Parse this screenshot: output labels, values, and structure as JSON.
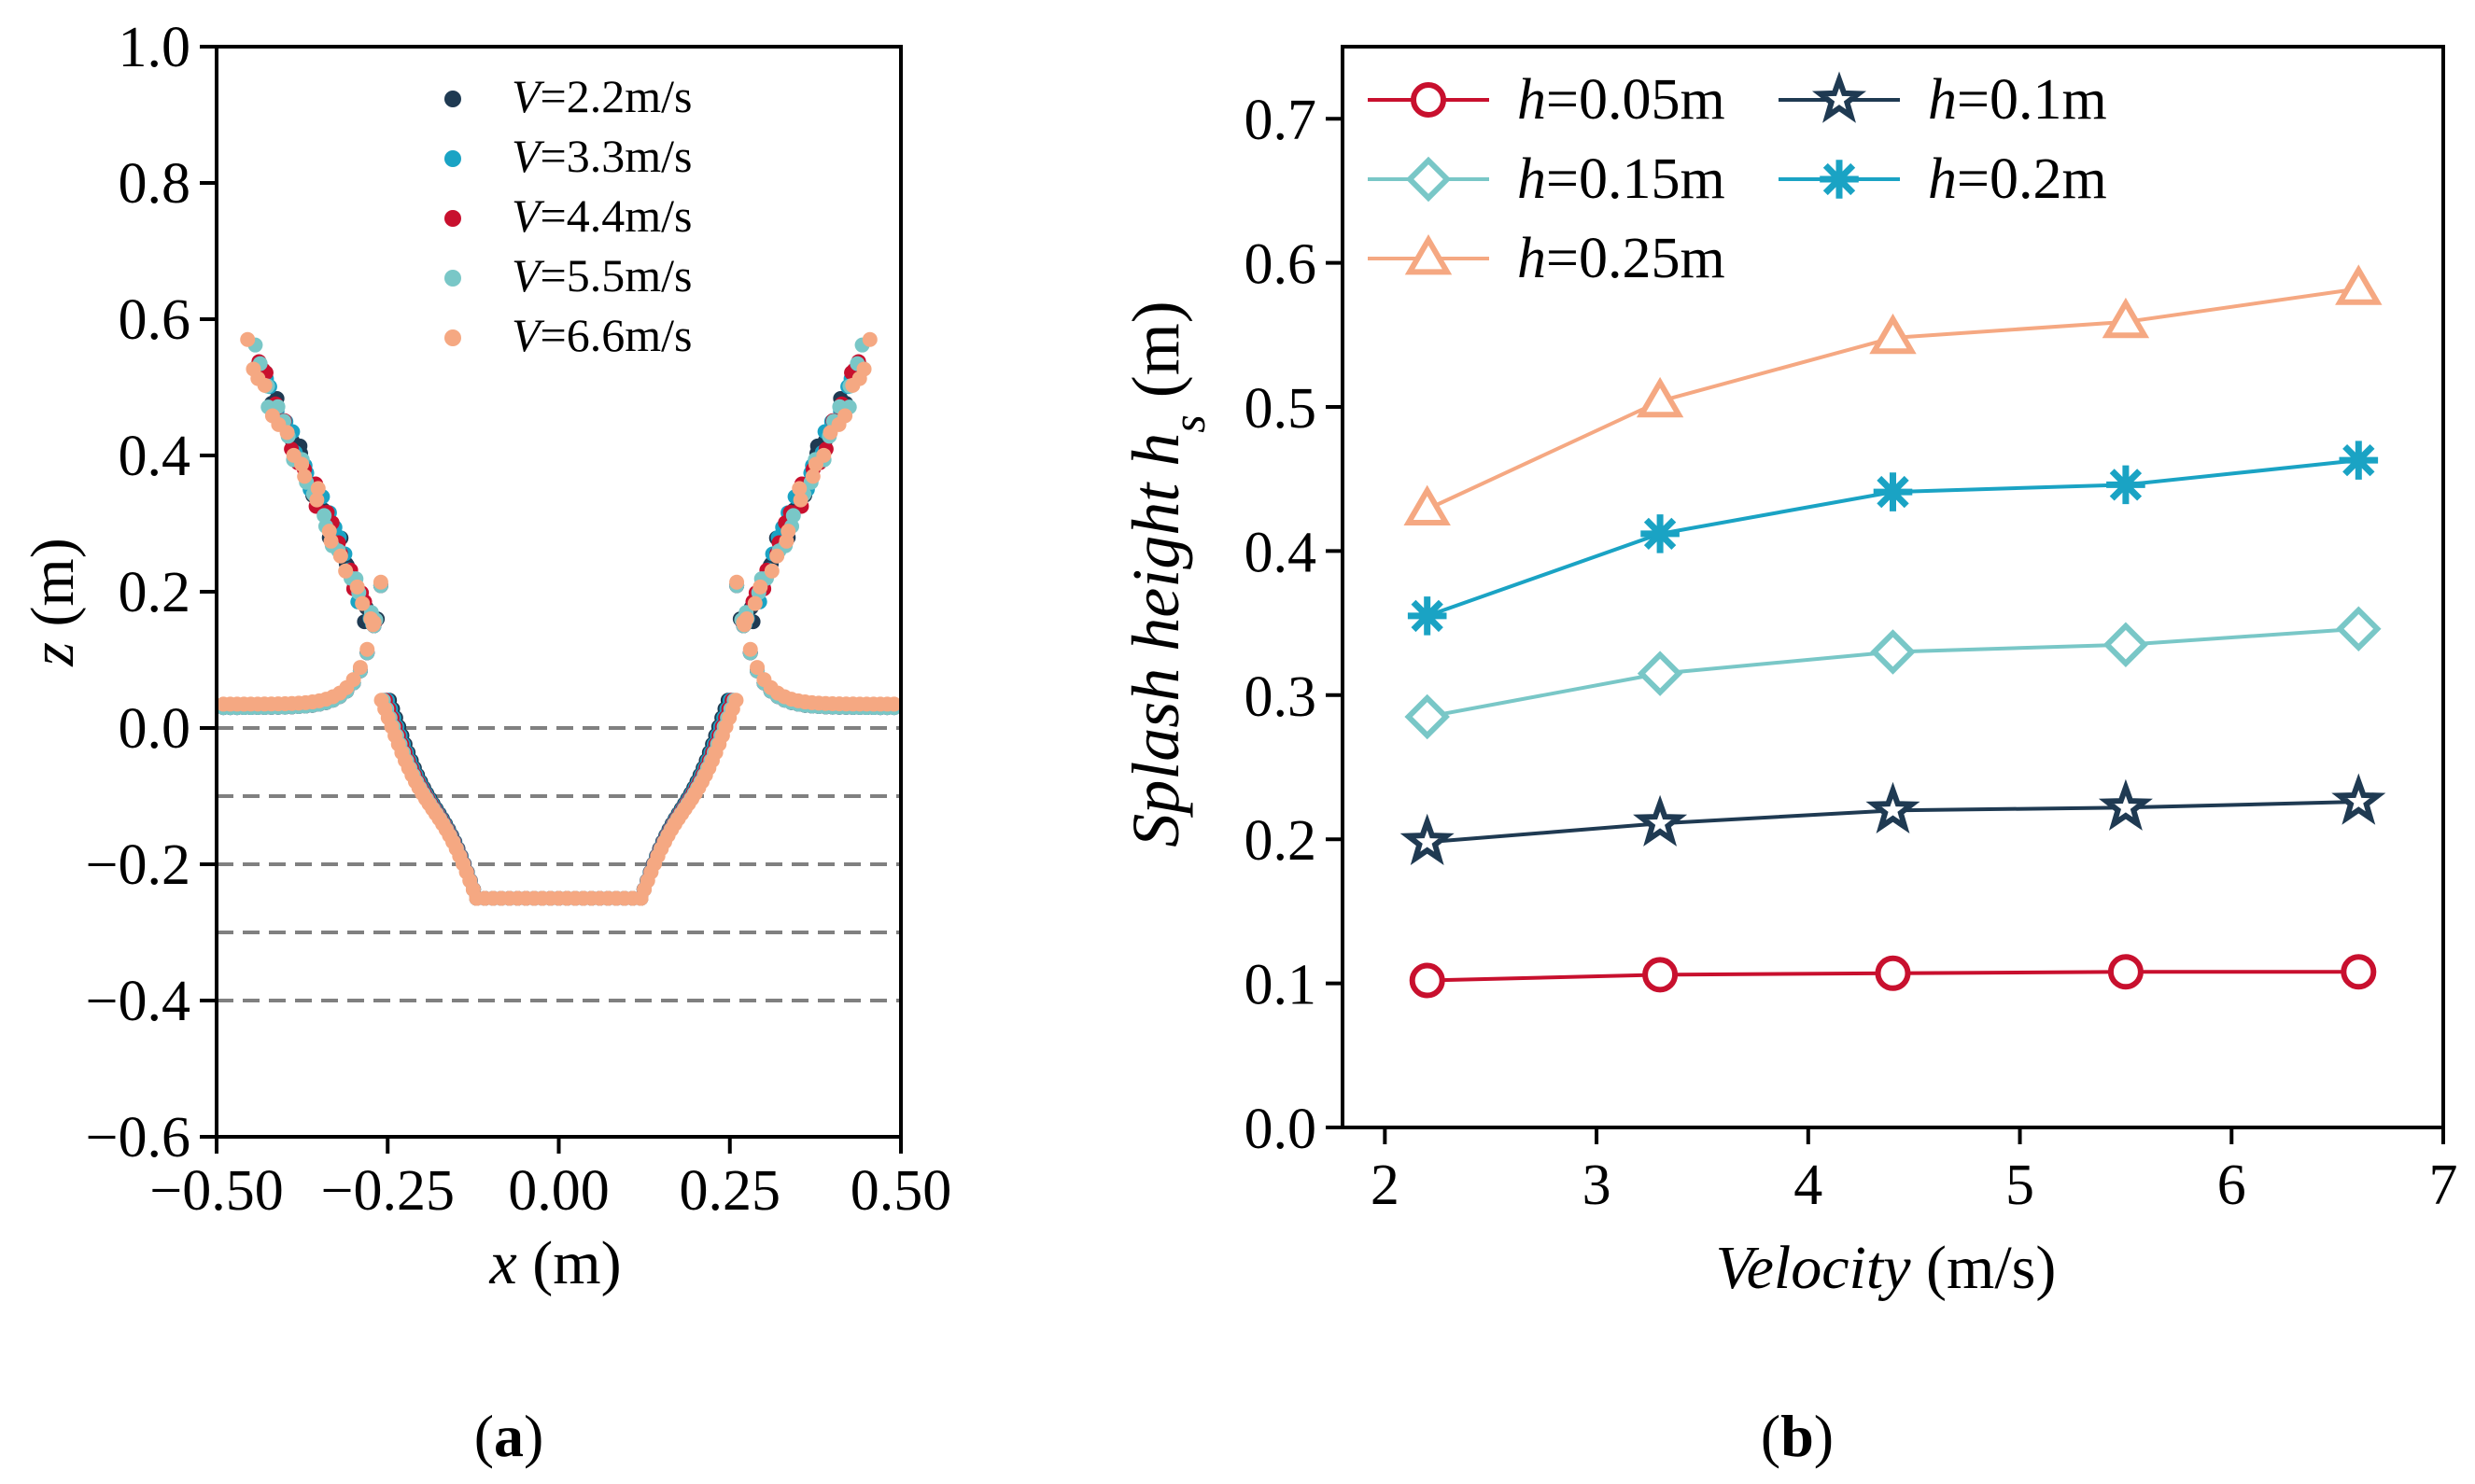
{
  "colors": {
    "c1": "#1f3a52",
    "c2": "#1aa3c4",
    "c3": "#c8102e",
    "c4": "#79c7c7",
    "c5": "#f5a882",
    "axis": "#000000",
    "dashed": "#808080"
  },
  "chart_data": [
    {
      "panel": "(a)",
      "panel_label_open": "(",
      "panel_label_letter": "a",
      "panel_label_close": ")",
      "type": "scatter",
      "xlabel_var": "x",
      "xlabel_unit": " (m)",
      "ylabel_var": "z",
      "ylabel_unit": " (m)",
      "xlim": [
        -0.5,
        0.5
      ],
      "ylim": [
        -0.6,
        1.0
      ],
      "xticks": [
        -0.5,
        -0.25,
        0.0,
        0.25,
        0.5
      ],
      "xtick_labels": [
        "−0.50",
        "−0.25",
        "0.00",
        "0.25",
        "0.50"
      ],
      "yticks": [
        -0.6,
        -0.4,
        -0.2,
        0.0,
        0.2,
        0.4,
        0.6,
        0.8,
        1.0
      ],
      "ytick_labels": [
        "−0.6",
        "−0.4",
        "−0.2",
        "0.0",
        "0.2",
        "0.4",
        "0.6",
        "0.8",
        "1.0"
      ],
      "reference_lines_z": [
        0.0,
        -0.1,
        -0.2,
        -0.3,
        -0.4
      ],
      "legend_location": "top-right",
      "series": [
        {
          "name": "V=2.2m/s",
          "label_var": "V",
          "label_rest": "=2.2m/s",
          "color_key": "c1",
          "rim_height": 0.03,
          "splash_height": 0.55
        },
        {
          "name": "V=3.3m/s",
          "label_var": "V",
          "label_rest": "=3.3m/s",
          "color_key": "c2",
          "rim_height": 0.03,
          "splash_height": 0.56
        },
        {
          "name": "V=4.4m/s",
          "label_var": "V",
          "label_rest": "=4.4m/s",
          "color_key": "c3",
          "rim_height": 0.03,
          "splash_height": 0.57
        },
        {
          "name": "V=5.5m/s",
          "label_var": "V",
          "label_rest": "=5.5m/s",
          "color_key": "c4",
          "rim_height": 0.03,
          "splash_height": 0.57
        },
        {
          "name": "V=6.6m/s",
          "label_var": "V",
          "label_rest": "=6.6m/s",
          "color_key": "c5",
          "rim_height": 0.035,
          "splash_height": 0.58
        }
      ]
    },
    {
      "panel": "(b)",
      "panel_label_open": "(",
      "panel_label_letter": "b",
      "panel_label_close": ")",
      "type": "line",
      "xlabel_var": "Velocity",
      "xlabel_unit": " (m/s)",
      "ylabel_var": "Splash height h",
      "ylabel_sub": "s",
      "ylabel_unit": " (m)",
      "xlim": [
        1.8,
        7.0
      ],
      "ylim": [
        0.0,
        0.75
      ],
      "xticks": [
        2,
        3,
        4,
        5,
        6,
        7
      ],
      "xtick_labels": [
        "2",
        "3",
        "4",
        "5",
        "6",
        "7"
      ],
      "yticks": [
        0.0,
        0.1,
        0.2,
        0.3,
        0.4,
        0.5,
        0.6,
        0.7
      ],
      "ytick_labels": [
        "0.0",
        "0.1",
        "0.2",
        "0.3",
        "0.4",
        "0.5",
        "0.6",
        "0.7"
      ],
      "x": [
        2.2,
        3.3,
        4.4,
        5.5,
        6.6
      ],
      "legend_location": "top-left",
      "series": [
        {
          "name": "h=0.05m",
          "label_var": "h",
          "label_rest": "=0.05m",
          "marker": "circle",
          "color_key": "c3",
          "values": [
            0.102,
            0.106,
            0.107,
            0.108,
            0.108
          ]
        },
        {
          "name": "h=0.1m",
          "label_var": "h",
          "label_rest": "=0.1m",
          "marker": "star",
          "color_key": "c1",
          "values": [
            0.198,
            0.211,
            0.22,
            0.222,
            0.226
          ]
        },
        {
          "name": "h=0.15m",
          "label_var": "h",
          "label_rest": "=0.15m",
          "marker": "diamond",
          "color_key": "c4",
          "values": [
            0.285,
            0.315,
            0.33,
            0.335,
            0.346
          ]
        },
        {
          "name": "h=0.2m",
          "label_var": "h",
          "label_rest": "=0.2m",
          "marker": "asterisk",
          "color_key": "c2",
          "values": [
            0.355,
            0.412,
            0.441,
            0.446,
            0.463
          ]
        },
        {
          "name": "h=0.25m",
          "label_var": "h",
          "label_rest": "=0.25m",
          "marker": "triangle",
          "color_key": "c5",
          "values": [
            0.429,
            0.504,
            0.548,
            0.559,
            0.582
          ]
        }
      ]
    }
  ]
}
